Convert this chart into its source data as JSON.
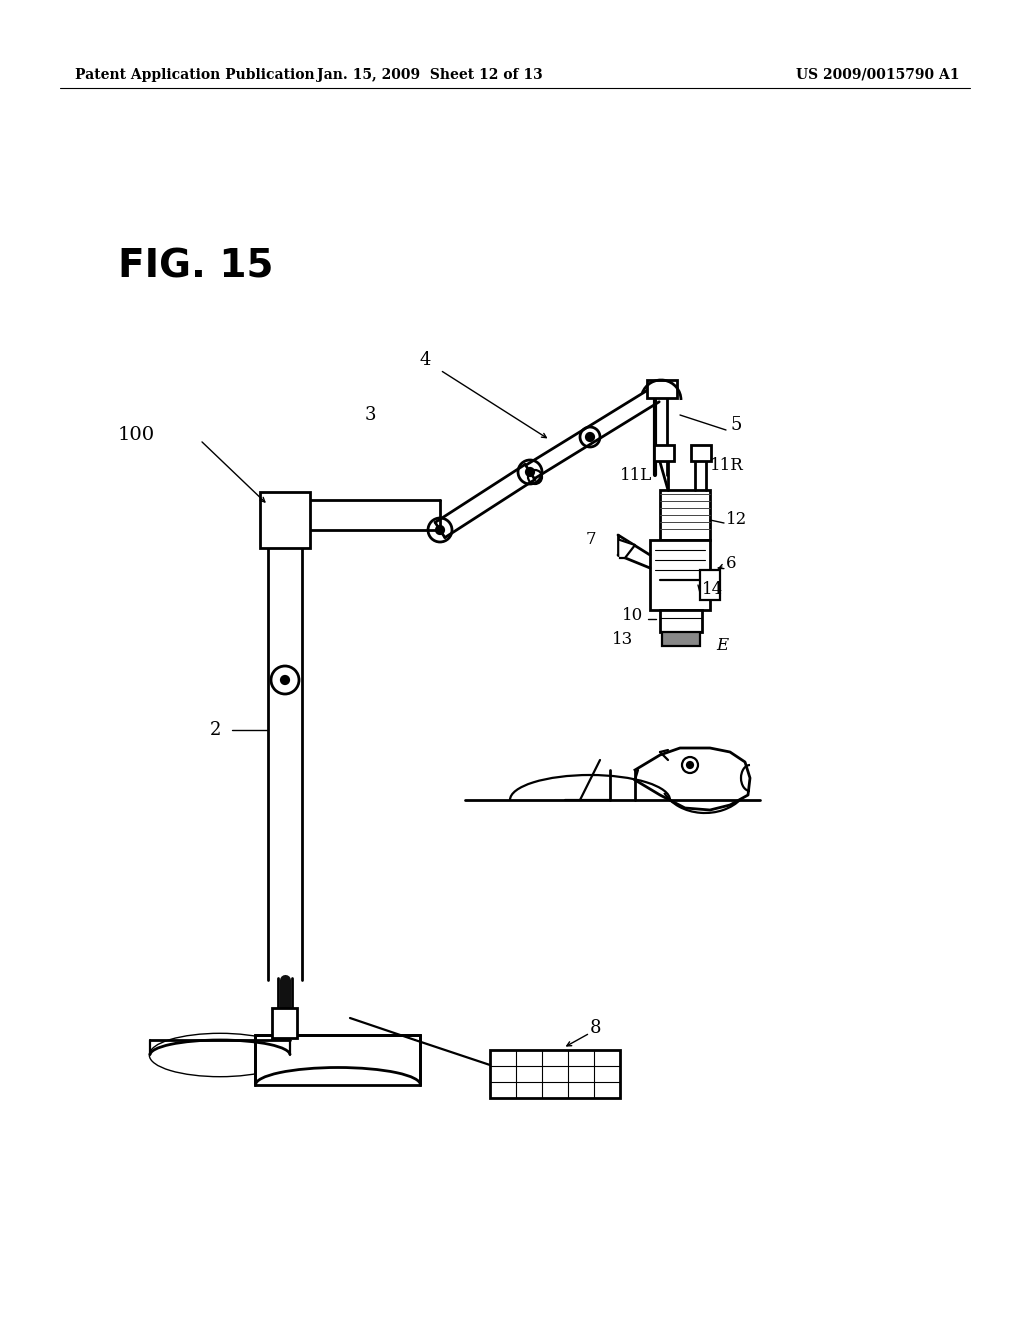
{
  "background_color": "#ffffff",
  "header_left": "Patent Application Publication",
  "header_center": "Jan. 15, 2009  Sheet 12 of 13",
  "header_right": "US 2009/0015790 A1",
  "figure_label": "FIG. 15"
}
